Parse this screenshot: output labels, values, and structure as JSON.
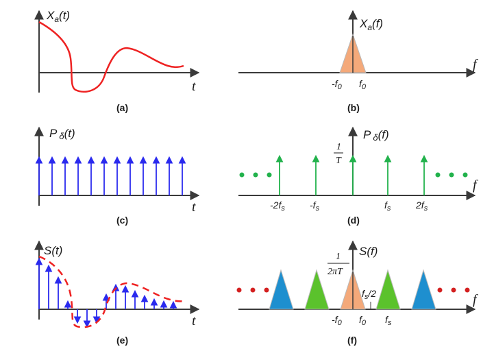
{
  "colors": {
    "axis": "#3a3a3a",
    "signal": "#ee2222",
    "impulse": "#2a2aee",
    "impulse_freq": "#22b24c",
    "spectrum_base": "#f4a97a",
    "spectrum_shift1": "#5bc22c",
    "spectrum_shift2": "#1e8fcf",
    "dots_green": "#22b24c",
    "dots_red": "#d42020"
  },
  "panel_a": {
    "title": "X",
    "title_sub": "a",
    "title_arg": "(t)",
    "axis_label": "t",
    "caption": "(a)"
  },
  "panel_b": {
    "title": "X",
    "title_sub": "a",
    "title_arg": "(f)",
    "axis_label": "f",
    "tick_neg": "-f",
    "tick_neg_sub": "0",
    "tick_pos": "f",
    "tick_pos_sub": "0",
    "caption": "(b)"
  },
  "panel_c": {
    "title": "P",
    "title_sub": "δ",
    "title_arg": "(t)",
    "axis_label": "t",
    "caption": "(c)"
  },
  "panel_d": {
    "title": "P",
    "title_sub": "δ",
    "title_arg": "(f)",
    "axis_label": "f",
    "amp_num": "1",
    "amp_den": "T",
    "ticks": [
      {
        "pre": "-2",
        "base": "f",
        "sub": "s"
      },
      {
        "pre": "-",
        "base": "f",
        "sub": "s"
      },
      {
        "pre": "",
        "base": "f",
        "sub": "s"
      },
      {
        "pre": "2",
        "base": "f",
        "sub": "s"
      }
    ],
    "caption": "(d)"
  },
  "panel_e": {
    "title": "S(t)",
    "axis_label": "t",
    "caption": "(e)"
  },
  "panel_f": {
    "title": "S(f)",
    "axis_label": "f",
    "amp_num": "1",
    "amp_den": "2πT",
    "half_label": "f",
    "half_sub": "s",
    "half_tail": "/2",
    "tick_neg": "-f",
    "tick_neg_sub": "0",
    "tick_pos": "f",
    "tick_pos_sub": "0",
    "tick_fs": "f",
    "tick_fs_sub": "s",
    "caption": "(f)"
  }
}
